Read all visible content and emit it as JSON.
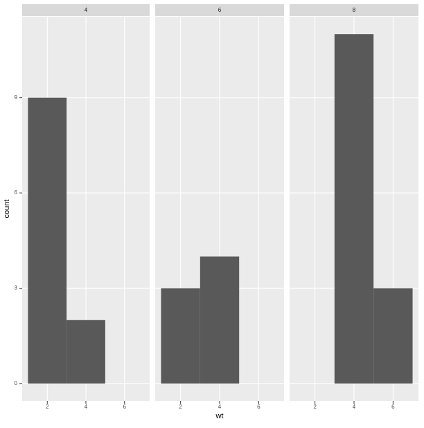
{
  "chart_data": {
    "type": "histogram",
    "xlabel": "wt",
    "ylabel": "count",
    "bins": [
      1,
      3,
      5,
      7
    ],
    "color": "#595959",
    "facets": [
      {
        "title": "4",
        "values": [
          9,
          2,
          0
        ]
      },
      {
        "title": "6",
        "values": [
          3,
          4,
          0
        ]
      },
      {
        "title": "8",
        "values": [
          0,
          11,
          3
        ]
      }
    ],
    "xlim": [
      0.7,
      7.3
    ],
    "xticks": [
      2,
      4,
      6
    ],
    "ylim": [
      -0.55,
      11.55
    ],
    "yticks": [
      0,
      3,
      6,
      9
    ],
    "grid": true
  }
}
